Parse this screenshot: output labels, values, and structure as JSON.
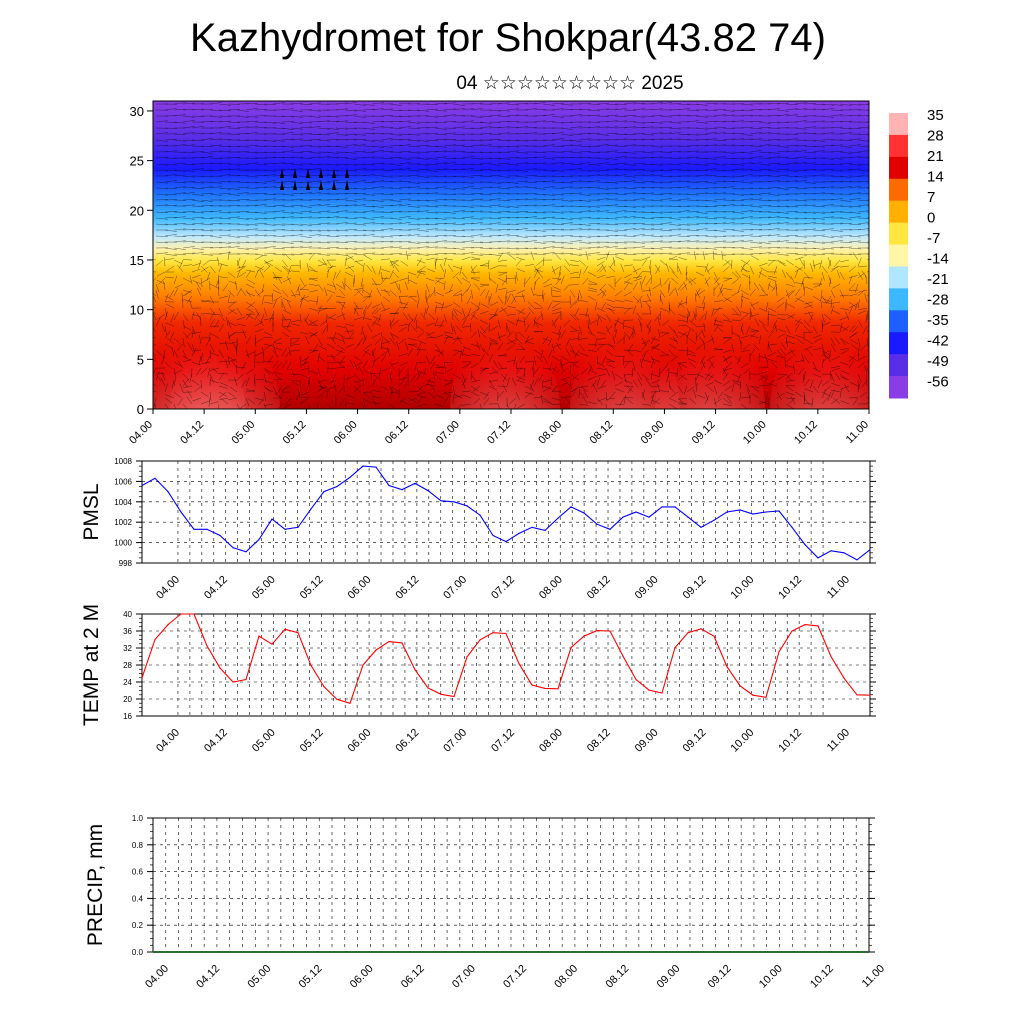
{
  "header": {
    "title": "Kazhydromet for Shokpar(43.82 74)",
    "subtitle": "04 ☆☆☆☆☆☆☆☆☆ 2025"
  },
  "x_ticks": [
    "04.00",
    "04.12",
    "05.00",
    "05.12",
    "06.00",
    "06.12",
    "07.00",
    "07.12",
    "08.00",
    "08.12",
    "09.00",
    "09.12",
    "10.00",
    "10.12",
    "11.00"
  ],
  "colors": {
    "pmsl_line": "#0000ff",
    "temp_line": "#ff0000",
    "colorbar": [
      "#ffb3b3",
      "#ff3333",
      "#e00000",
      "#ff6a00",
      "#ffb000",
      "#ffe640",
      "#fff6a8",
      "#b0e6ff",
      "#3db8ff",
      "#1e60ff",
      "#1a1aff",
      "#5a2ee6",
      "#8a3de6"
    ]
  },
  "chart_data": [
    {
      "type": "heatmap",
      "title": "",
      "ylim": [
        0,
        31
      ],
      "y_ticks": [
        "0",
        "5",
        "10",
        "15",
        "20",
        "25",
        "30"
      ],
      "x_ticks_ref": "x_ticks",
      "colorbar_labels": [
        "35",
        "28",
        "21",
        "14",
        "7",
        "0",
        "-7",
        "-14",
        "-21",
        "-28",
        "-35",
        "-42",
        "-49",
        "-56"
      ],
      "overlay": "wind vectors"
    },
    {
      "type": "line",
      "ylabel": "PMSL",
      "ylim": [
        998,
        1008
      ],
      "y_ticks": [
        "998",
        "1000",
        "1002",
        "1004",
        "1006",
        "1008"
      ],
      "x_ticks_ref": "x_ticks",
      "x": [
        0,
        3,
        6,
        9,
        12,
        15,
        18,
        21,
        24,
        27,
        30,
        33,
        36,
        39,
        42,
        45,
        48,
        51,
        54,
        57,
        60,
        63,
        66,
        69,
        72,
        75,
        78,
        81,
        84,
        87,
        90,
        93,
        96,
        99,
        102,
        105,
        108,
        111,
        114,
        117,
        120,
        123,
        126,
        129,
        132,
        135,
        138,
        141,
        144,
        147,
        150,
        153,
        156,
        159,
        162,
        165,
        168
      ],
      "values": [
        1005.6,
        1006.3,
        1005,
        1003,
        1001.3,
        1001.3,
        1000.7,
        999.5,
        999.1,
        1000.3,
        1002.3,
        1001.3,
        1001.5,
        1003.3,
        1005,
        1005.5,
        1006.4,
        1007.5,
        1007.4,
        1005.6,
        1005.2,
        1005.8,
        1005.1,
        1004.1,
        1004,
        1003.6,
        1002.7,
        1000.7,
        1000.1,
        1000.9,
        1001.5,
        1001.2,
        1002.4,
        1003.5,
        1002.9,
        1001.8,
        1001.3,
        1002.5,
        1003,
        1002.5,
        1003.5,
        1003.5,
        1002.5,
        1001.5,
        1002.2,
        1003,
        1003.2,
        1002.8,
        1003,
        1003.1,
        1001.5,
        999.8,
        998.5,
        999.2,
        999,
        998.3,
        999.3
      ]
    },
    {
      "type": "line",
      "ylabel": "TEMP at 2 M",
      "ylim": [
        16,
        40
      ],
      "y_ticks": [
        "16",
        "20",
        "24",
        "28",
        "32",
        "36",
        "40"
      ],
      "x_ticks_ref": "x_ticks",
      "x": [
        0,
        3,
        6,
        9,
        12,
        15,
        18,
        21,
        24,
        27,
        30,
        33,
        36,
        39,
        42,
        45,
        48,
        51,
        54,
        57,
        60,
        63,
        66,
        69,
        72,
        75,
        78,
        81,
        84,
        87,
        90,
        93,
        96,
        99,
        102,
        105,
        108,
        111,
        114,
        117,
        120,
        123,
        126,
        129,
        132,
        135,
        138,
        141,
        144,
        147,
        150,
        153,
        156,
        159,
        162,
        165,
        168
      ],
      "values": [
        25,
        34,
        37.5,
        40,
        40,
        32.5,
        27.3,
        24,
        24.6,
        34.8,
        32.9,
        36.4,
        35.6,
        27.9,
        22.9,
        19.9,
        19,
        28,
        31.5,
        33.5,
        33.2,
        26.9,
        22.6,
        21.1,
        20.6,
        29.9,
        33.9,
        35.6,
        35.4,
        28.3,
        23.3,
        22.5,
        22.4,
        32.1,
        34.8,
        36.1,
        36,
        30.1,
        24.6,
        22.1,
        21.4,
        32.1,
        35.6,
        36.5,
        34.8,
        27.6,
        23.1,
        20.9,
        20.4,
        31.1,
        36,
        37.5,
        37.2,
        30,
        24.9,
        21,
        20.9
      ]
    },
    {
      "type": "bar",
      "ylabel": "PRECIP, mm",
      "ylim": [
        0,
        1
      ],
      "y_ticks": [
        "0.0",
        "0.2",
        "0.4",
        "0.6",
        "0.8",
        "1.0"
      ],
      "x_ticks_ref": "x_ticks",
      "values": []
    }
  ]
}
